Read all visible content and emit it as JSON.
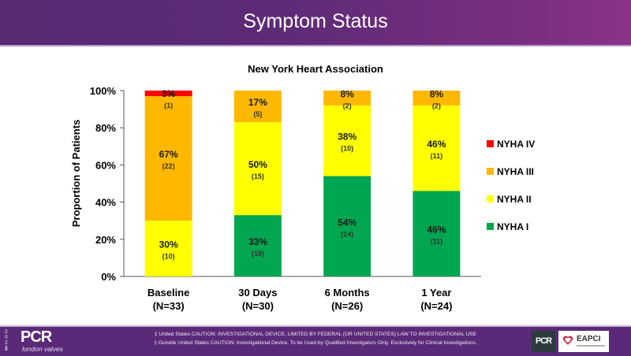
{
  "header": {
    "title": "Symptom Status"
  },
  "chart_data": {
    "type": "bar",
    "stacked": true,
    "title": "New York Heart Association",
    "xlabel": "",
    "ylabel": "Proportion of Patients",
    "ylim": [
      0,
      100
    ],
    "yticks": [
      "0%",
      "20%",
      "40%",
      "60%",
      "80%",
      "100%"
    ],
    "ytick_values": [
      0,
      20,
      40,
      60,
      80,
      100
    ],
    "grid": false,
    "legend_position": "right",
    "categories": [
      {
        "label": "Baseline",
        "n": "(N=33)"
      },
      {
        "label": "30 Days",
        "n": "(N=30)"
      },
      {
        "label": "6 Months",
        "n": "(N=26)"
      },
      {
        "label": "1 Year",
        "n": "(N=24)"
      }
    ],
    "series": [
      {
        "name": "NYHA I",
        "color": "#00a650",
        "values": [
          0,
          33,
          54,
          46
        ],
        "counts": [
          0,
          10,
          14,
          11
        ],
        "labels": [
          "",
          "33%",
          "54%",
          "46%"
        ],
        "count_labels": [
          "",
          "(10)",
          "(14)",
          "(11)"
        ]
      },
      {
        "name": "NYHA II",
        "color": "#ffff00",
        "values": [
          30,
          50,
          38,
          46
        ],
        "counts": [
          10,
          15,
          10,
          11
        ],
        "labels": [
          "30%",
          "50%",
          "38%",
          "46%"
        ],
        "count_labels": [
          "(10)",
          "(15)",
          "(10)",
          "(11)"
        ]
      },
      {
        "name": "NYHA III",
        "color": "#ffb800",
        "values": [
          67,
          17,
          8,
          8
        ],
        "counts": [
          22,
          5,
          2,
          2
        ],
        "labels": [
          "67%",
          "17%",
          "8%",
          "8%"
        ],
        "count_labels": [
          "(22)",
          "(5)",
          "(2)",
          "(2)"
        ]
      },
      {
        "name": "NYHA IV",
        "color": "#ff0000",
        "values": [
          3,
          0,
          0,
          0
        ],
        "counts": [
          1,
          0,
          0,
          0
        ],
        "labels": [
          "3%",
          "",
          "",
          ""
        ],
        "count_labels": [
          "(1)",
          "",
          "",
          ""
        ]
      }
    ],
    "legend_order": [
      "NYHA IV",
      "NYHA III",
      "NYHA II",
      "NYHA I"
    ]
  },
  "footer": {
    "year_digits": [
      "2",
      "0",
      "2",
      "3"
    ],
    "logo": "PCR",
    "logo_sub": "london valves",
    "slide_number": "1",
    "disclaimer_line1": "‡ United States CAUTION: INVESTIGATIONAL DEVICE, LIMITED BY FEDERAL (OR UNITED STATES) LAW TO INVESTIGATIONAL USE",
    "disclaimer_line2": "‡ Outside United States CAUTION: Investigational Device. To be Used by Qualified Investigators Only. Exclusively for Clinical Investigations.",
    "partner_pcr": "PCR",
    "partner_eapci": "EAPCI"
  }
}
